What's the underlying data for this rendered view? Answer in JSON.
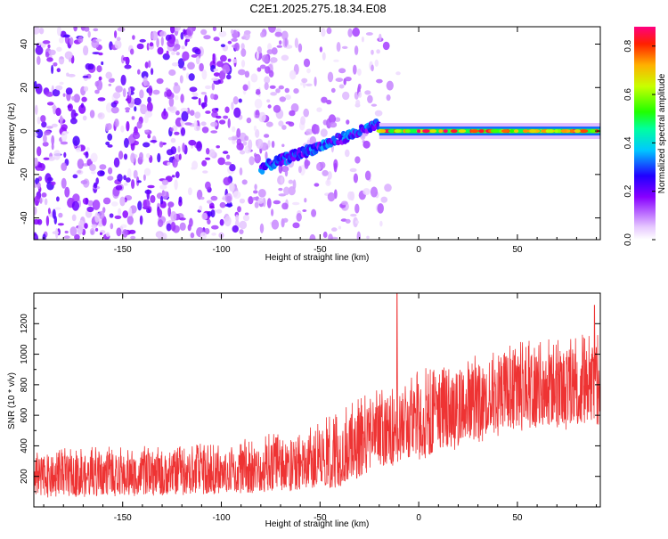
{
  "title": "C2E1.2025.275.18.34.E08",
  "chart_data": [
    {
      "type": "heatmap",
      "name": "spectrogram",
      "xlabel": "Height of straight line (km)",
      "ylabel": "Frequency (Hz)",
      "xlim": [
        -195,
        92
      ],
      "ylim": [
        -50,
        48
      ],
      "xticks": [
        -150,
        -100,
        -50,
        0,
        50
      ],
      "yticks": [
        -40,
        -20,
        0,
        20,
        40
      ],
      "colorbar": {
        "label": "Normalized spectral amplitude",
        "range": [
          0,
          0.88
        ],
        "ticks": [
          0.0,
          0.2,
          0.4,
          0.6,
          0.8
        ],
        "tick_labels": [
          "0.0",
          "0.2",
          "0.4",
          "0.6",
          "0.8"
        ]
      },
      "features": [
        {
          "name": "steady carrier",
          "x_range": [
            -20,
            92
          ],
          "frequency": 0,
          "amplitude": 0.7
        },
        {
          "name": "drifting tone",
          "x_range": [
            -80,
            -20
          ],
          "frequency_start": -17,
          "frequency_end": 3,
          "amplitude": 0.3
        },
        {
          "name": "background noise",
          "x_range": [
            -195,
            -25
          ],
          "amplitude": 0.1
        }
      ]
    },
    {
      "type": "line",
      "name": "snr",
      "xlabel": "Height of straight line (km)",
      "ylabel": "SNR (10 * v/v)",
      "xlim": [
        -195,
        92
      ],
      "ylim": [
        0,
        1400
      ],
      "xticks": [
        -150,
        -100,
        -50,
        0,
        50
      ],
      "yticks": [
        200,
        400,
        600,
        800,
        1000,
        1200
      ],
      "color": "#ee3333",
      "trend": [
        {
          "x": -195,
          "low": 60,
          "high": 380,
          "mean": 200
        },
        {
          "x": -100,
          "low": 80,
          "high": 420,
          "mean": 220
        },
        {
          "x": -60,
          "low": 100,
          "high": 520,
          "mean": 270
        },
        {
          "x": -40,
          "low": 130,
          "high": 650,
          "mean": 340
        },
        {
          "x": -20,
          "low": 250,
          "high": 780,
          "mean": 480
        },
        {
          "x": 0,
          "low": 300,
          "high": 900,
          "mean": 560
        },
        {
          "x": 25,
          "low": 400,
          "high": 980,
          "mean": 680
        },
        {
          "x": 50,
          "low": 480,
          "high": 1080,
          "mean": 760
        },
        {
          "x": 92,
          "low": 520,
          "high": 1150,
          "mean": 800
        }
      ],
      "peaks": [
        {
          "x": -11,
          "y": 1400
        },
        {
          "x": 89,
          "y": 1320
        }
      ]
    }
  ]
}
